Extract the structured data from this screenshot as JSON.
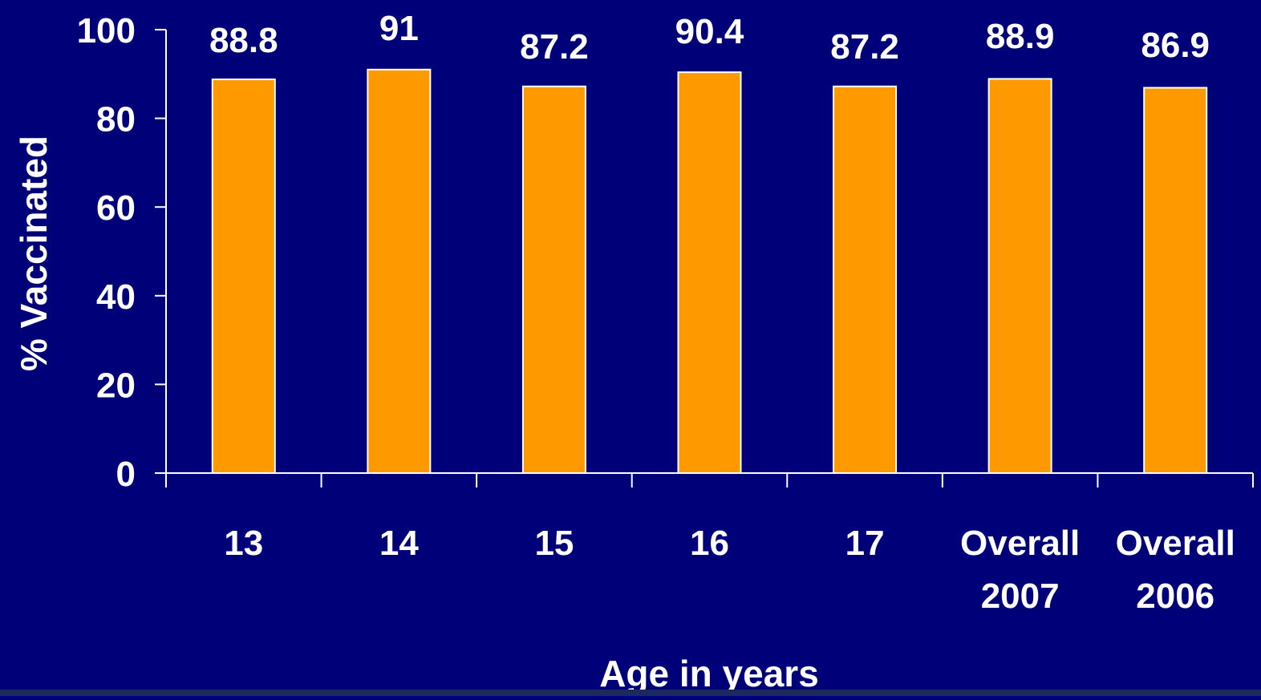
{
  "chart_data": {
    "type": "bar",
    "categories": [
      [
        "13"
      ],
      [
        "14"
      ],
      [
        "15"
      ],
      [
        "16"
      ],
      [
        "17"
      ],
      [
        "Overall",
        "2007"
      ],
      [
        "Overall",
        "2006"
      ]
    ],
    "values": [
      88.8,
      91,
      87.2,
      90.4,
      87.2,
      88.9,
      86.9
    ],
    "data_labels": [
      "88.8",
      "91",
      "87.2",
      "90.4",
      "87.2",
      "88.9",
      "86.9"
    ],
    "xlabel": "Age in years",
    "ylabel": "% Vaccinated",
    "ylim": [
      0,
      100
    ],
    "yticks": [
      0,
      20,
      40,
      60,
      80,
      100
    ],
    "grid": false,
    "legend": "none",
    "colors": {
      "background": "#000078",
      "bar": "#FF9900",
      "bar_edge": "#FFFFFF",
      "axis": "#FFFFFF",
      "text": "#FFFFFF"
    }
  }
}
